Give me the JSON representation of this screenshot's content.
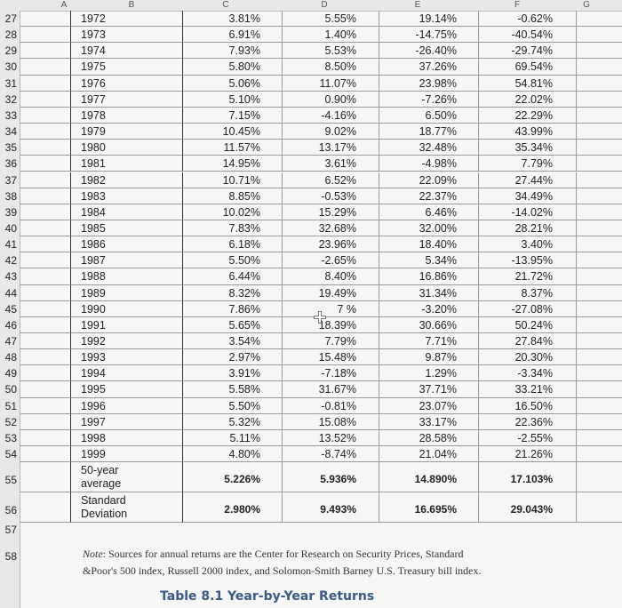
{
  "columns": [
    "A",
    "B",
    "C",
    "D",
    "E",
    "F",
    "G"
  ],
  "rows": [
    {
      "n": "27",
      "year": "1972",
      "c": "3.81%",
      "d": "5.55%",
      "e": "19.14%",
      "f": "-0.62%"
    },
    {
      "n": "28",
      "year": "1973",
      "c": "6.91%",
      "d": "1.40%",
      "e": "-14.75%",
      "f": "-40.54%"
    },
    {
      "n": "29",
      "year": "1974",
      "c": "7.93%",
      "d": "5.53%",
      "e": "-26.40%",
      "f": "-29.74%"
    },
    {
      "n": "30",
      "year": "1975",
      "c": "5.80%",
      "d": "8.50%",
      "e": "37.26%",
      "f": "69.54%"
    },
    {
      "n": "31",
      "year": "1976",
      "c": "5.06%",
      "d": "11.07%",
      "e": "23.98%",
      "f": "54.81%"
    },
    {
      "n": "32",
      "year": "1977",
      "c": "5.10%",
      "d": "0.90%",
      "e": "-7.26%",
      "f": "22.02%"
    },
    {
      "n": "33",
      "year": "1978",
      "c": "7.15%",
      "d": "-4.16%",
      "e": "6.50%",
      "f": "22.29%"
    },
    {
      "n": "34",
      "year": "1979",
      "c": "10.45%",
      "d": "9.02%",
      "e": "18.77%",
      "f": "43.99%"
    },
    {
      "n": "35",
      "year": "1980",
      "c": "11.57%",
      "d": "13.17%",
      "e": "32.48%",
      "f": "35.34%"
    },
    {
      "n": "36",
      "year": "1981",
      "c": "14.95%",
      "d": "3.61%",
      "e": "-4.98%",
      "f": "7.79%"
    },
    {
      "n": "37",
      "year": "1982",
      "c": "10.71%",
      "d": "6.52%",
      "e": "22.09%",
      "f": "27.44%"
    },
    {
      "n": "38",
      "year": "1983",
      "c": "8.85%",
      "d": "-0.53%",
      "e": "22.37%",
      "f": "34.49%"
    },
    {
      "n": "39",
      "year": "1984",
      "c": "10.02%",
      "d": "15.29%",
      "e": "6.46%",
      "f": "-14.02%"
    },
    {
      "n": "40",
      "year": "1985",
      "c": "7.83%",
      "d": "32.68%",
      "e": "32.00%",
      "f": "28.21%"
    },
    {
      "n": "41",
      "year": "1986",
      "c": "6.18%",
      "d": "23.96%",
      "e": "18.40%",
      "f": "3.40%"
    },
    {
      "n": "42",
      "year": "1987",
      "c": "5.50%",
      "d": "-2.65%",
      "e": "5.34%",
      "f": "-13.95%"
    },
    {
      "n": "43",
      "year": "1988",
      "c": "6.44%",
      "d": "8.40%",
      "e": "16.86%",
      "f": "21.72%"
    },
    {
      "n": "44",
      "year": "1989",
      "c": "8.32%",
      "d": "19.49%",
      "e": "31.34%",
      "f": "8.37%"
    },
    {
      "n": "45",
      "year": "1990",
      "c": "7.86%",
      "d": "7 %",
      "e": "-3.20%",
      "f": "-27.08%"
    },
    {
      "n": "46",
      "year": "1991",
      "c": "5.65%",
      "d": "18.39%",
      "e": "30.66%",
      "f": "50.24%"
    },
    {
      "n": "47",
      "year": "1992",
      "c": "3.54%",
      "d": "7.79%",
      "e": "7.71%",
      "f": "27.84%"
    },
    {
      "n": "48",
      "year": "1993",
      "c": "2.97%",
      "d": "15.48%",
      "e": "9.87%",
      "f": "20.30%"
    },
    {
      "n": "49",
      "year": "1994",
      "c": "3.91%",
      "d": "-7.18%",
      "e": "1.29%",
      "f": "-3.34%"
    },
    {
      "n": "50",
      "year": "1995",
      "c": "5.58%",
      "d": "31.67%",
      "e": "37.71%",
      "f": "33.21%"
    },
    {
      "n": "51",
      "year": "1996",
      "c": "5.50%",
      "d": "-0.81%",
      "e": "23.07%",
      "f": "16.50%"
    },
    {
      "n": "52",
      "year": "1997",
      "c": "5.32%",
      "d": "15.08%",
      "e": "33.17%",
      "f": "22.36%"
    },
    {
      "n": "53",
      "year": "1998",
      "c": "5.11%",
      "d": "13.52%",
      "e": "28.58%",
      "f": "-2.55%"
    },
    {
      "n": "54",
      "year": "1999",
      "c": "4.80%",
      "d": "-8.74%",
      "e": "21.04%",
      "f": "21.26%"
    }
  ],
  "average_row": {
    "n": "55",
    "label_line1": "50-year",
    "label_line2": "average",
    "c": "5.226%",
    "d": "5.936%",
    "e": "14.890%",
    "f": "17.103%"
  },
  "stdev_row": {
    "n": "56",
    "label_line1": "Standard",
    "label_line2": "Deviation",
    "c": "2.980%",
    "d": "9.493%",
    "e": "16.695%",
    "f": "29.043%"
  },
  "empty_row": {
    "n": "57"
  },
  "note_row": {
    "n": "58"
  },
  "note": {
    "prefix": "Note",
    "line1": ": Sources for annual returns are the Center for Research on Security Prices, Standard",
    "line2": "&Poor's 500 index, Russell 2000 index, and Solomon-Smith Barney U.S. Treasury bill index."
  },
  "caption": "Table 8.1 Year-by-Year Returns"
}
